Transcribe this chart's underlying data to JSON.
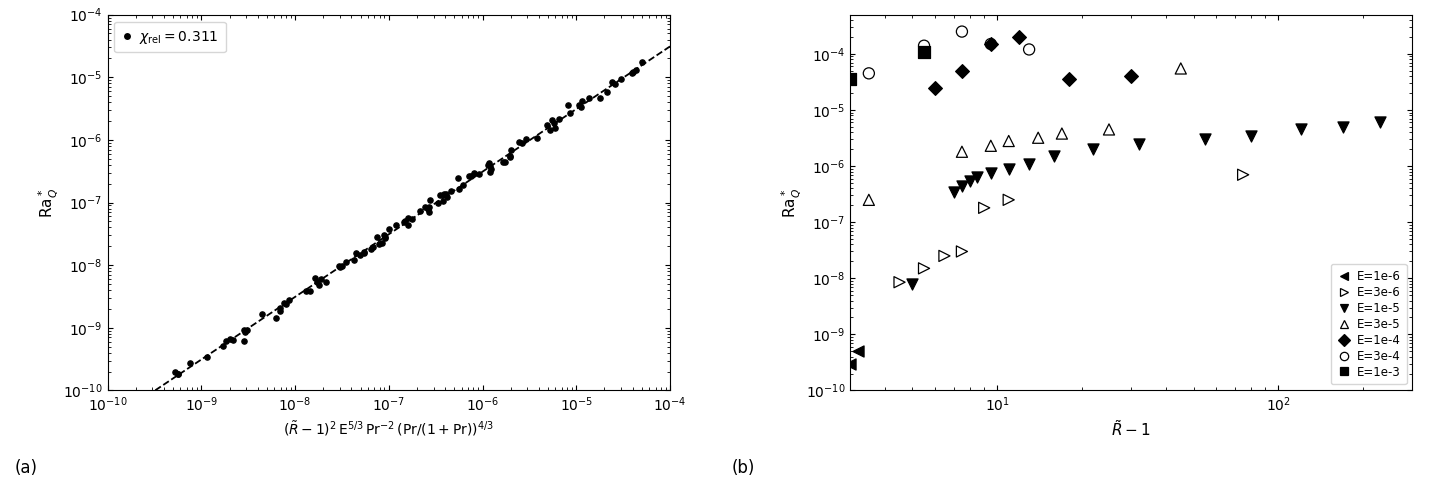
{
  "panel_a": {
    "ylabel": "Ra$_Q^*$",
    "xlabel": "$(\\tilde{R}-1)^2\\,\\mathrm{E}^{5/3}\\,\\mathrm{Pr}^{-2}\\,(\\mathrm{Pr}/(1+\\mathrm{Pr}))^{4/3}$",
    "xlim_log": [
      -10,
      -4
    ],
    "ylim_log": [
      -10,
      -4
    ],
    "legend_label": "$\\chi_{\\mathrm{rel}}=0.311$",
    "chi": 0.311
  },
  "panel_b": {
    "ylabel": "Ra$_Q^*$",
    "xlabel": "$\\tilde{R}-1$",
    "xlim": [
      3.0,
      300
    ],
    "ylim_log": [
      -10,
      -3.3
    ],
    "E1e-6": {
      "x": [
        3.0,
        3.2
      ],
      "y": [
        3e-10,
        5e-10
      ]
    },
    "E3e-6": {
      "x": [
        4.5,
        5.5,
        6.5,
        7.5,
        9.0,
        11.0,
        75.0
      ],
      "y": [
        8.5e-09,
        1.5e-08,
        2.5e-08,
        3e-08,
        1.8e-07,
        2.5e-07,
        7e-07
      ]
    },
    "E1e-5": {
      "x": [
        5.0,
        7.0,
        7.5,
        8.0,
        8.5,
        9.5,
        11.0,
        13.0,
        16.0,
        22.0,
        32.0,
        55.0,
        80.0,
        120.0,
        170.0,
        230.0
      ],
      "y": [
        8e-09,
        3.5e-07,
        4.5e-07,
        5.5e-07,
        6.5e-07,
        7.5e-07,
        9e-07,
        1.1e-06,
        1.5e-06,
        2e-06,
        2.5e-06,
        3e-06,
        3.5e-06,
        4.5e-06,
        5e-06,
        6e-06
      ]
    },
    "E3e-5": {
      "x": [
        3.5,
        7.5,
        9.5,
        11.0,
        14.0,
        17.0,
        25.0,
        45.0
      ],
      "y": [
        2.5e-07,
        1.8e-06,
        2.3e-06,
        2.8e-06,
        3.2e-06,
        3.8e-06,
        4.5e-06,
        5.5e-05
      ]
    },
    "E1e-4": {
      "x": [
        6.0,
        7.5,
        9.5,
        12.0,
        18.0,
        30.0
      ],
      "y": [
        2.5e-05,
        5e-05,
        0.00015,
        0.0002,
        3.5e-05,
        4e-05
      ]
    },
    "E3e-4": {
      "x": [
        3.5,
        5.5,
        7.5,
        9.5,
        13.0
      ],
      "y": [
        4.5e-05,
        0.00014,
        0.00025,
        0.00015,
        0.00012
      ]
    },
    "E1e-3": {
      "x": [
        3.0,
        5.5
      ],
      "y": [
        3.5e-05,
        0.00011
      ]
    }
  },
  "figure": {
    "label_a": "(a)",
    "label_b": "(b)"
  }
}
